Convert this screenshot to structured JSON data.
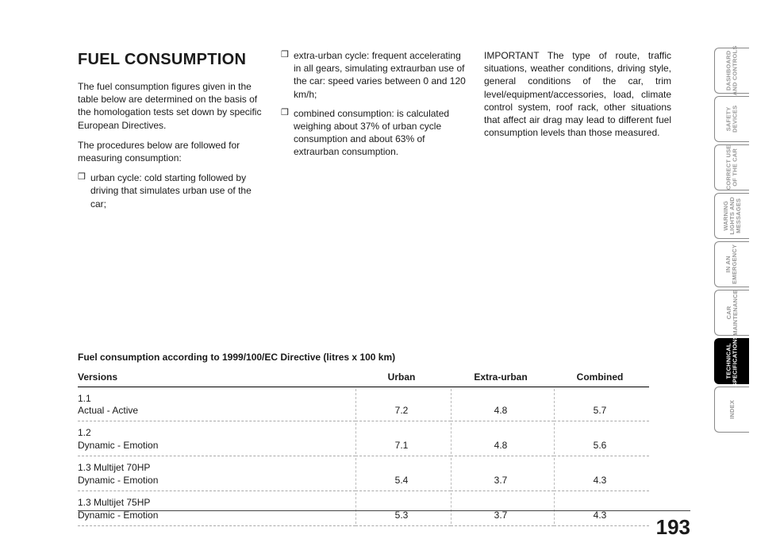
{
  "title": "FUEL CONSUMPTION",
  "col1": {
    "p1": "The fuel consumption figures given in the table below are determined on the basis of the homologation tests set down by specific European Directives.",
    "p2": "The procedures below are followed for measuring consumption:",
    "b1": "urban cycle: cold starting followed by driving that simulates urban use of the car;"
  },
  "col2": {
    "b1": "extra-urban cycle: frequent accelerating in all gears, simulating extraurban use of the car: speed varies between 0 and 120 km/h;",
    "b2": "combined consumption: is calculated weighing about 37% of urban cycle consumption and about 63% of extraurban consumption."
  },
  "col3": {
    "p1": "IMPORTANT The type of route, traffic situations, weather conditions, driving style, general conditions of the car, trim level/equipment/accessories, load, climate control system, roof rack, other situations that affect air drag may lead to different fuel consumption levels than those measured."
  },
  "table": {
    "caption": "Fuel consumption according to 1999/100/EC Directive (litres x 100 km)",
    "columns": [
      "Versions",
      "Urban",
      "Extra-urban",
      "Combined"
    ],
    "col_widths": [
      "350px",
      "120px",
      "130px",
      "120px"
    ],
    "rows": [
      {
        "v1": "1.1",
        "v2": "Actual - Active",
        "urban": "7.2",
        "extra": "4.8",
        "combined": "5.7"
      },
      {
        "v1": "1.2",
        "v2": "Dynamic - Emotion",
        "urban": "7.1",
        "extra": "4.8",
        "combined": "5.6"
      },
      {
        "v1": "1.3 Multijet 70HP",
        "v2": "Dynamic - Emotion",
        "urban": "5.4",
        "extra": "3.7",
        "combined": "4.3"
      },
      {
        "v1": "1.3 Multijet 75HP",
        "v2": "Dynamic - Emotion",
        "urban": "5.3",
        "extra": "3.7",
        "combined": "4.3"
      }
    ]
  },
  "tabs": [
    "DASHBOARD\nAND CONTROLS",
    "SAFETY\nDEVICES",
    "CORRECT USE\nOF THE CAR",
    "WARNING\nLIGHTS AND\nMESSAGES",
    "IN AN\nEMERGENCY",
    "CAR\nMAINTENANCE",
    "TECHNICAL\nSPECIFICATIONS",
    "INDEX"
  ],
  "active_tab_index": 6,
  "page_number": "193"
}
